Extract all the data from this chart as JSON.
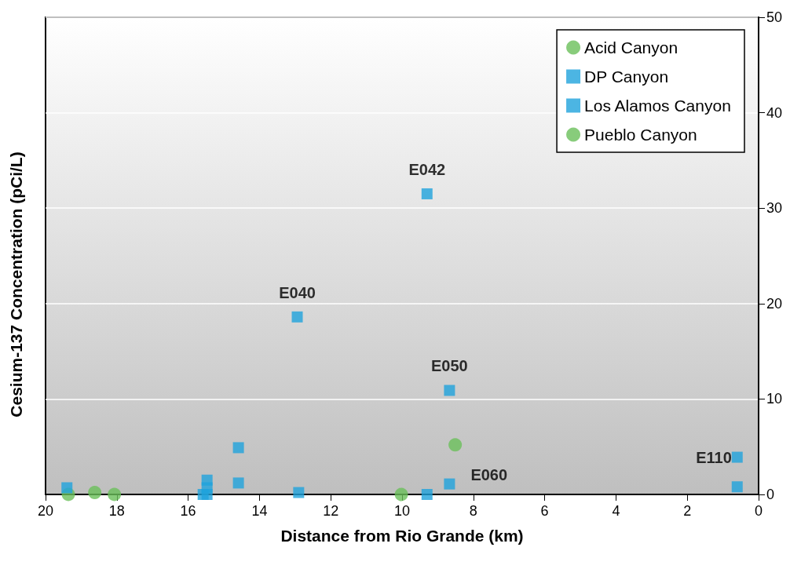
{
  "chart_data": {
    "type": "scatter",
    "xlabel": "Distance from Rio Grande (km)",
    "ylabel": "Cesium-137 Concentration (pCi/L)",
    "xlim": [
      20,
      0
    ],
    "xticks": [
      20,
      18,
      16,
      14,
      12,
      10,
      8,
      6,
      4,
      2,
      0
    ],
    "ylim": [
      0,
      50
    ],
    "yticks": [
      0,
      10,
      20,
      30,
      40,
      50
    ],
    "grid": "y",
    "legend": "top right",
    "series": [
      {
        "name": "Acid Canyon",
        "color": "#6abf5a",
        "marker": "circle",
        "x": [
          19.36,
          18.62
        ],
        "values": [
          0,
          0.2
        ]
      },
      {
        "name": "DP Canyon",
        "color": "#1fa3dc",
        "marker": "square",
        "x": [
          12.94,
          14.59,
          14.59,
          15.58
        ],
        "values": [
          18.6,
          4.9,
          1.2,
          0
        ]
      },
      {
        "name": "Los Alamos Canyon",
        "color": "#1fa3dc",
        "marker": "square",
        "x": [
          19.4,
          15.47,
          15.47,
          15.47,
          12.9,
          9.3,
          8.67,
          8.67,
          9.3,
          0.6,
          0.6
        ],
        "values": [
          0.7,
          1.5,
          0.7,
          0,
          0.2,
          31.5,
          10.9,
          1.1,
          0,
          3.9,
          0.8
        ]
      },
      {
        "name": "Pueblo Canyon",
        "color": "#6abf5a",
        "marker": "circle",
        "x": [
          18.07,
          10.02,
          8.51
        ],
        "values": [
          0,
          0,
          5.2
        ]
      }
    ],
    "annotations": [
      {
        "text": "E042",
        "x": 9.3,
        "y": 31.5
      },
      {
        "text": "E040",
        "x": 12.94,
        "y": 18.6
      },
      {
        "text": "E050",
        "x": 8.67,
        "y": 10.9
      },
      {
        "text": "E060",
        "x": 8.67,
        "y": 1.1
      },
      {
        "text": "E110",
        "x": 0.6,
        "y": 3.9
      }
    ]
  }
}
